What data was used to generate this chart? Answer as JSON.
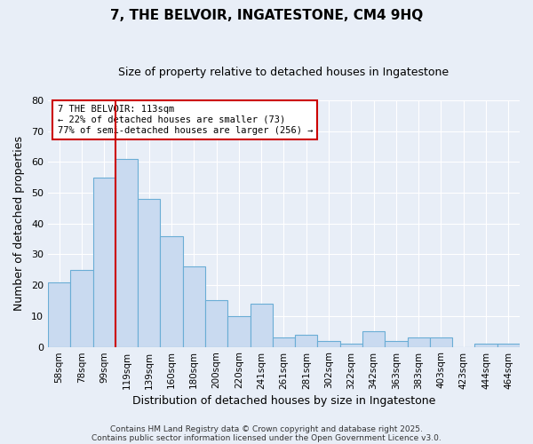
{
  "title": "7, THE BELVOIR, INGATESTONE, CM4 9HQ",
  "subtitle": "Size of property relative to detached houses in Ingatestone",
  "xlabel": "Distribution of detached houses by size in Ingatestone",
  "ylabel": "Number of detached properties",
  "bar_labels": [
    "58sqm",
    "78sqm",
    "99sqm",
    "119sqm",
    "139sqm",
    "160sqm",
    "180sqm",
    "200sqm",
    "220sqm",
    "241sqm",
    "261sqm",
    "281sqm",
    "302sqm",
    "322sqm",
    "342sqm",
    "363sqm",
    "383sqm",
    "403sqm",
    "423sqm",
    "444sqm",
    "464sqm"
  ],
  "bar_values": [
    21,
    25,
    55,
    61,
    48,
    36,
    26,
    15,
    10,
    14,
    3,
    4,
    2,
    1,
    5,
    2,
    3,
    3,
    0,
    1,
    1
  ],
  "bar_color": "#c9daf0",
  "bar_edge_color": "#6aadd5",
  "vline_color": "#cc0000",
  "annotation_text": "7 THE BELVOIR: 113sqm\n← 22% of detached houses are smaller (73)\n77% of semi-detached houses are larger (256) →",
  "annotation_box_color": "#ffffff",
  "annotation_box_edge": "#cc0000",
  "ylim": [
    0,
    80
  ],
  "yticks": [
    0,
    10,
    20,
    30,
    40,
    50,
    60,
    70,
    80
  ],
  "bg_color": "#e8eef7",
  "grid_color": "#ffffff",
  "footer1": "Contains HM Land Registry data © Crown copyright and database right 2025.",
  "footer2": "Contains public sector information licensed under the Open Government Licence v3.0."
}
